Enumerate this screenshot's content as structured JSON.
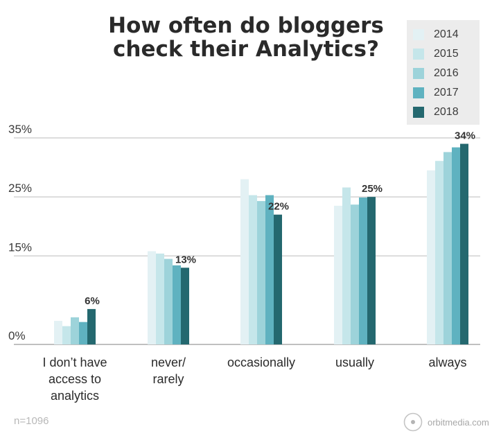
{
  "title_lines": [
    "How often do bloggers",
    "check their Analytics?"
  ],
  "footnote": "n=1096",
  "brand": {
    "text": "orbitmedia.com",
    "icon": "orbit-logo-icon"
  },
  "colors": {
    "2014": "#e3f1f4",
    "2015": "#c5e6ea",
    "2016": "#9dd3da",
    "2017": "#5fb2c0",
    "2018": "#24686f",
    "grid": "#c8c8c8",
    "legend_bg": "#ececec"
  },
  "chart_data": {
    "type": "bar",
    "title": "How often do bloggers check their Analytics?",
    "categories": [
      [
        "I don’t have",
        "access to",
        "analytics"
      ],
      [
        "never/",
        "rarely"
      ],
      [
        "occasionally"
      ],
      [
        "usually"
      ],
      [
        "always"
      ]
    ],
    "series": [
      {
        "name": "2014",
        "values": [
          4.0,
          15.8,
          28.0,
          23.5,
          29.5
        ]
      },
      {
        "name": "2015",
        "values": [
          3.1,
          15.4,
          25.3,
          26.6,
          31.1
        ]
      },
      {
        "name": "2016",
        "values": [
          4.6,
          14.5,
          24.3,
          23.7,
          32.6
        ]
      },
      {
        "name": "2017",
        "values": [
          3.8,
          13.4,
          25.3,
          24.9,
          33.4
        ]
      },
      {
        "name": "2018",
        "values": [
          6,
          13,
          22,
          25,
          34
        ]
      }
    ],
    "data_labels": [
      "6%",
      "13%",
      "22%",
      "25%",
      "34%"
    ],
    "y_ticks": [
      {
        "value": 0,
        "label": "0%"
      },
      {
        "value": 15,
        "label": "15%"
      },
      {
        "value": 25,
        "label": "25%"
      },
      {
        "value": 35,
        "label": "35%"
      }
    ],
    "ylim": [
      0,
      35
    ],
    "grid": true,
    "legend_position": "top-right"
  }
}
